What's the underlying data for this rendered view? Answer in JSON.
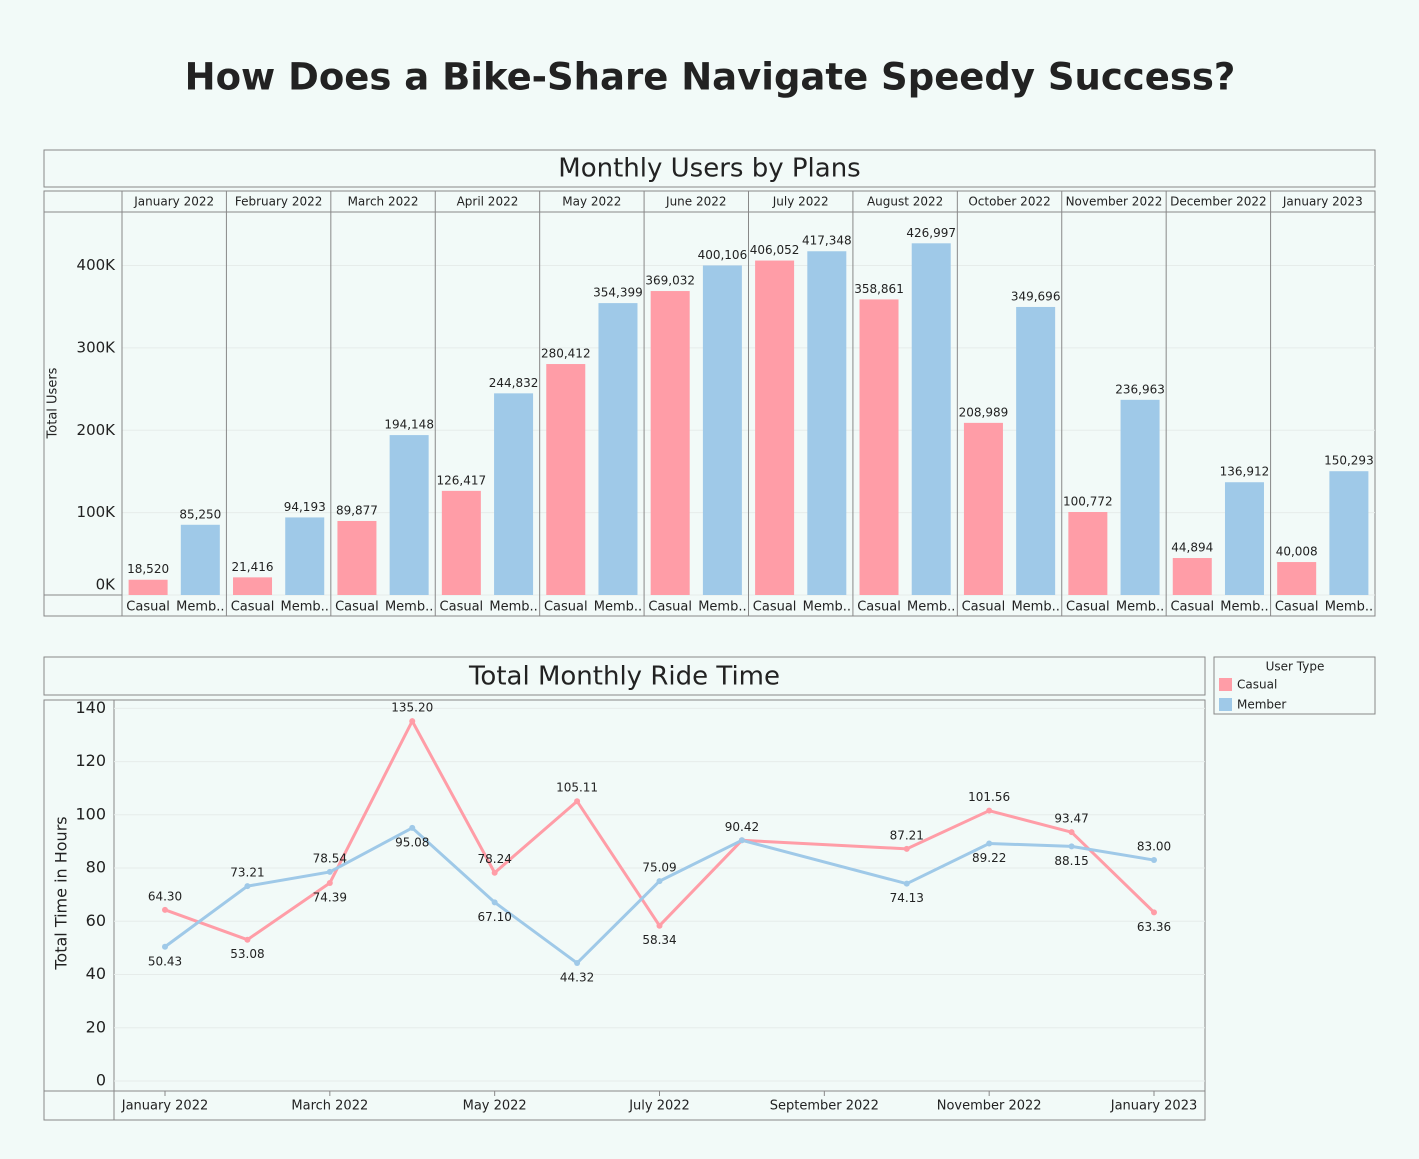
{
  "title": "How Does a Bike-Share Navigate Speedy Success?",
  "chart_data": [
    {
      "type": "bar",
      "title": "Monthly Users by Plans",
      "ylabel": "Total Users",
      "categories": [
        "January 2022",
        "February 2022",
        "March 2022",
        "April 2022",
        "May 2022",
        "June 2022",
        "July 2022",
        "August 2022",
        "October 2022",
        "November 2022",
        "December 2022",
        "January 2023"
      ],
      "subcategory_labels": [
        "Casual",
        "Memb.."
      ],
      "series": [
        {
          "name": "Casual",
          "color": "#ff9da7",
          "values": [
            18520,
            21416,
            89877,
            126417,
            280412,
            369032,
            406052,
            358861,
            208989,
            100772,
            44894,
            40008
          ],
          "value_labels": [
            "18,520",
            "21,416",
            "89,877",
            "126,417",
            "280,412",
            "369,032",
            "406,052",
            "358,861",
            "208,989",
            "100,772",
            "44,894",
            "40,008"
          ]
        },
        {
          "name": "Member",
          "color": "#9fc9e8",
          "values": [
            85250,
            94193,
            194148,
            244832,
            354399,
            400106,
            417348,
            426997,
            349696,
            236963,
            136912,
            150293
          ],
          "value_labels": [
            "85,250",
            "94,193",
            "194,148",
            "244,832",
            "354,399",
            "400,106",
            "417,348",
            "426,997",
            "349,696",
            "236,963",
            "136,912",
            "150,293"
          ]
        }
      ],
      "ylim": [
        0,
        465000
      ],
      "yticks": [
        {
          "value": 0,
          "label": "0K"
        },
        {
          "value": 100000,
          "label": "100K"
        },
        {
          "value": 200000,
          "label": "200K"
        },
        {
          "value": 300000,
          "label": "300K"
        },
        {
          "value": 400000,
          "label": "400K"
        }
      ],
      "grid": true
    },
    {
      "type": "line",
      "title": "Total Monthly Ride Time",
      "ylabel": "Total Time in Hours",
      "legend_title": "User Type",
      "x": [
        "2022-01",
        "2022-02",
        "2022-03",
        "2022-04",
        "2022-05",
        "2022-06",
        "2022-07",
        "2022-08",
        "2022-10",
        "2022-11",
        "2022-12",
        "2023-01"
      ],
      "series": [
        {
          "name": "Casual",
          "color": "#ff9da7",
          "values": [
            64.3,
            53.08,
            74.39,
            135.2,
            78.24,
            105.11,
            58.34,
            90.42,
            87.21,
            101.56,
            93.47,
            63.36
          ],
          "value_labels": [
            "64.30",
            "53.08",
            "74.39",
            "135.20",
            "78.24",
            "105.11",
            "58.34",
            null,
            "87.21",
            "101.56",
            "93.47",
            "63.36"
          ]
        },
        {
          "name": "Member",
          "color": "#9fc9e8",
          "values": [
            50.43,
            73.21,
            78.54,
            95.08,
            67.1,
            44.32,
            75.09,
            90.42,
            74.13,
            89.22,
            88.15,
            83.0
          ],
          "value_labels": [
            "50.43",
            "73.21",
            "78.54",
            "95.08",
            "67.10",
            "44.32",
            "75.09",
            "90.42",
            "74.13",
            "89.22",
            "88.15",
            "83.00"
          ]
        }
      ],
      "xlim": [
        "2022-01",
        "2023-01"
      ],
      "xticks": [
        {
          "value": "2022-01",
          "label": "January 2022"
        },
        {
          "value": "2022-03",
          "label": "March 2022"
        },
        {
          "value": "2022-05",
          "label": "May 2022"
        },
        {
          "value": "2022-07",
          "label": "July 2022"
        },
        {
          "value": "2022-09",
          "label": "September 2022"
        },
        {
          "value": "2022-11",
          "label": "November 2022"
        },
        {
          "value": "2023-01",
          "label": "January 2023"
        }
      ],
      "ylim": [
        0,
        142
      ],
      "yticks": [
        0,
        20,
        40,
        60,
        80,
        100,
        120,
        140
      ],
      "grid": true,
      "legend": "right"
    }
  ]
}
